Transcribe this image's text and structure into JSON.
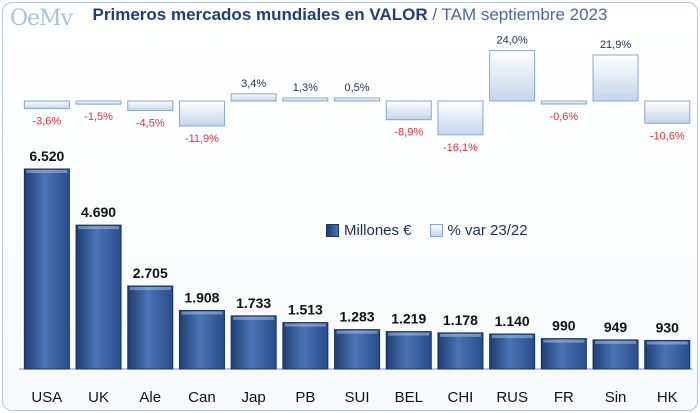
{
  "header": {
    "logo_text": "OeMv",
    "title_bold": "Primeros mercados mundiales en VALOR",
    "title_rest": "/ TAM septiembre 2023"
  },
  "legend": {
    "bar_label": "Millones €",
    "var_label": "% var 23/22"
  },
  "colors": {
    "bar_dark": "#1f3d73",
    "bar_light": "#4b74b5",
    "var_fill_top": "#ffffff",
    "var_fill_bottom": "#c3d5ec",
    "negative_label": "#e0323a",
    "positive_label": "#1f2f4f"
  },
  "chart_data": {
    "type": "bar",
    "title": "Primeros mercados mundiales en VALOR / TAM septiembre 2023",
    "xlabel": "",
    "ylabel": "",
    "categories": [
      "USA",
      "UK",
      "Ale",
      "Can",
      "Jap",
      "PB",
      "SUI",
      "BEL",
      "CHI",
      "RUS",
      "FR",
      "Sin",
      "HK"
    ],
    "series": [
      {
        "name": "Millones €",
        "values": [
          6520,
          4690,
          2705,
          1908,
          1733,
          1513,
          1283,
          1219,
          1178,
          1140,
          990,
          949,
          930
        ],
        "labels": [
          "6.520",
          "4.690",
          "2.705",
          "1.908",
          "1.733",
          "1.513",
          "1.283",
          "1.219",
          "1.178",
          "1.140",
          "990",
          "949",
          "930"
        ]
      },
      {
        "name": "% var 23/22",
        "values": [
          -3.6,
          -1.5,
          -4.5,
          -11.9,
          3.4,
          1.3,
          0.5,
          -8.9,
          -16.1,
          24.0,
          -0.6,
          21.9,
          -10.6
        ],
        "labels": [
          "-3,6%",
          "-1,5%",
          "-4,5%",
          "-11,9%",
          "3,4%",
          "1,3%",
          "0,5%",
          "-8,9%",
          "-16,1%",
          "24,0%",
          "-0,6%",
          "21,9%",
          "-10,6%"
        ]
      }
    ],
    "legend_position": "middle-right"
  }
}
